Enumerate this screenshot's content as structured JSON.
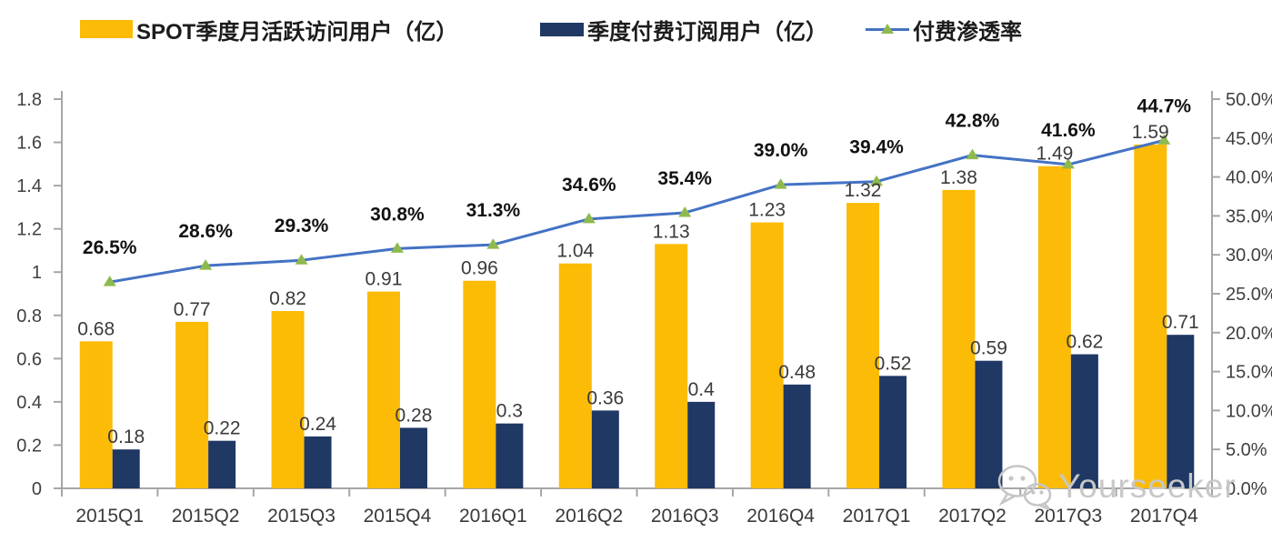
{
  "legend": {
    "items": [
      {
        "label": "SPOT季度月活跃访问用户（亿）",
        "type": "bar",
        "color": "#FCBB06"
      },
      {
        "label": "季度付费订阅用户（亿）",
        "type": "bar",
        "color": "#1F3864"
      },
      {
        "label": "付费渗透率",
        "type": "line",
        "color": "#4472C4",
        "marker_color": "#8FB94E"
      }
    ]
  },
  "watermark": {
    "text": "Yourseeker",
    "icon": "wechat-icon",
    "color": "#C8C8C8"
  },
  "chart_data": {
    "type": "bar",
    "subtype": "grouped bars + line (dual axis combo)",
    "categories": [
      "2015Q1",
      "2015Q2",
      "2015Q3",
      "2015Q4",
      "2016Q1",
      "2016Q2",
      "2016Q3",
      "2016Q4",
      "2017Q1",
      "2017Q2",
      "2017Q3",
      "2017Q4"
    ],
    "series": [
      {
        "name": "SPOT季度月活跃访问用户（亿）",
        "type": "bar",
        "axis": "left",
        "color": "#FCBB06",
        "values": [
          0.68,
          0.77,
          0.82,
          0.91,
          0.96,
          1.04,
          1.13,
          1.23,
          1.32,
          1.38,
          1.49,
          1.59
        ],
        "labels": [
          "0.68",
          "0.77",
          "0.82",
          "0.91",
          "0.96",
          "1.04",
          "1.13",
          "1.23",
          "1.32",
          "1.38",
          "1.49",
          "1.59"
        ]
      },
      {
        "name": "季度付费订阅用户（亿）",
        "type": "bar",
        "axis": "left",
        "color": "#1F3864",
        "values": [
          0.18,
          0.22,
          0.24,
          0.28,
          0.3,
          0.36,
          0.4,
          0.48,
          0.52,
          0.59,
          0.62,
          0.71
        ],
        "labels": [
          "0.18",
          "0.22",
          "0.24",
          "0.28",
          "0.3",
          "0.36",
          "0.4",
          "0.48",
          "0.52",
          "0.59",
          "0.62",
          "0.71"
        ]
      },
      {
        "name": "付费渗透率",
        "type": "line",
        "axis": "right",
        "color": "#4472C4",
        "marker": "triangle",
        "marker_color": "#8FB94E",
        "values": [
          26.5,
          28.6,
          29.3,
          30.8,
          31.3,
          34.6,
          35.4,
          39.0,
          39.4,
          42.8,
          41.6,
          44.7
        ],
        "labels": [
          "26.5%",
          "28.6%",
          "29.3%",
          "30.8%",
          "31.3%",
          "34.6%",
          "35.4%",
          "39.0%",
          "39.4%",
          "42.8%",
          "41.6%",
          "44.7%"
        ]
      }
    ],
    "left_axis": {
      "min": 0,
      "max": 1.8,
      "step": 0.2,
      "tick_labels": [
        "0",
        "0.2",
        "0.4",
        "0.6",
        "0.8",
        "1",
        "1.2",
        "1.4",
        "1.6",
        "1.8"
      ]
    },
    "right_axis": {
      "min": 0,
      "max": 50,
      "step": 5,
      "tick_labels": [
        "0.0%",
        "5.0%",
        "10.0%",
        "15.0%",
        "20.0%",
        "25.0%",
        "30.0%",
        "35.0%",
        "40.0%",
        "45.0%",
        "50.0%"
      ]
    },
    "axis_color": "#A6A6A6",
    "grid": false,
    "legend_position": "top",
    "title": ""
  }
}
